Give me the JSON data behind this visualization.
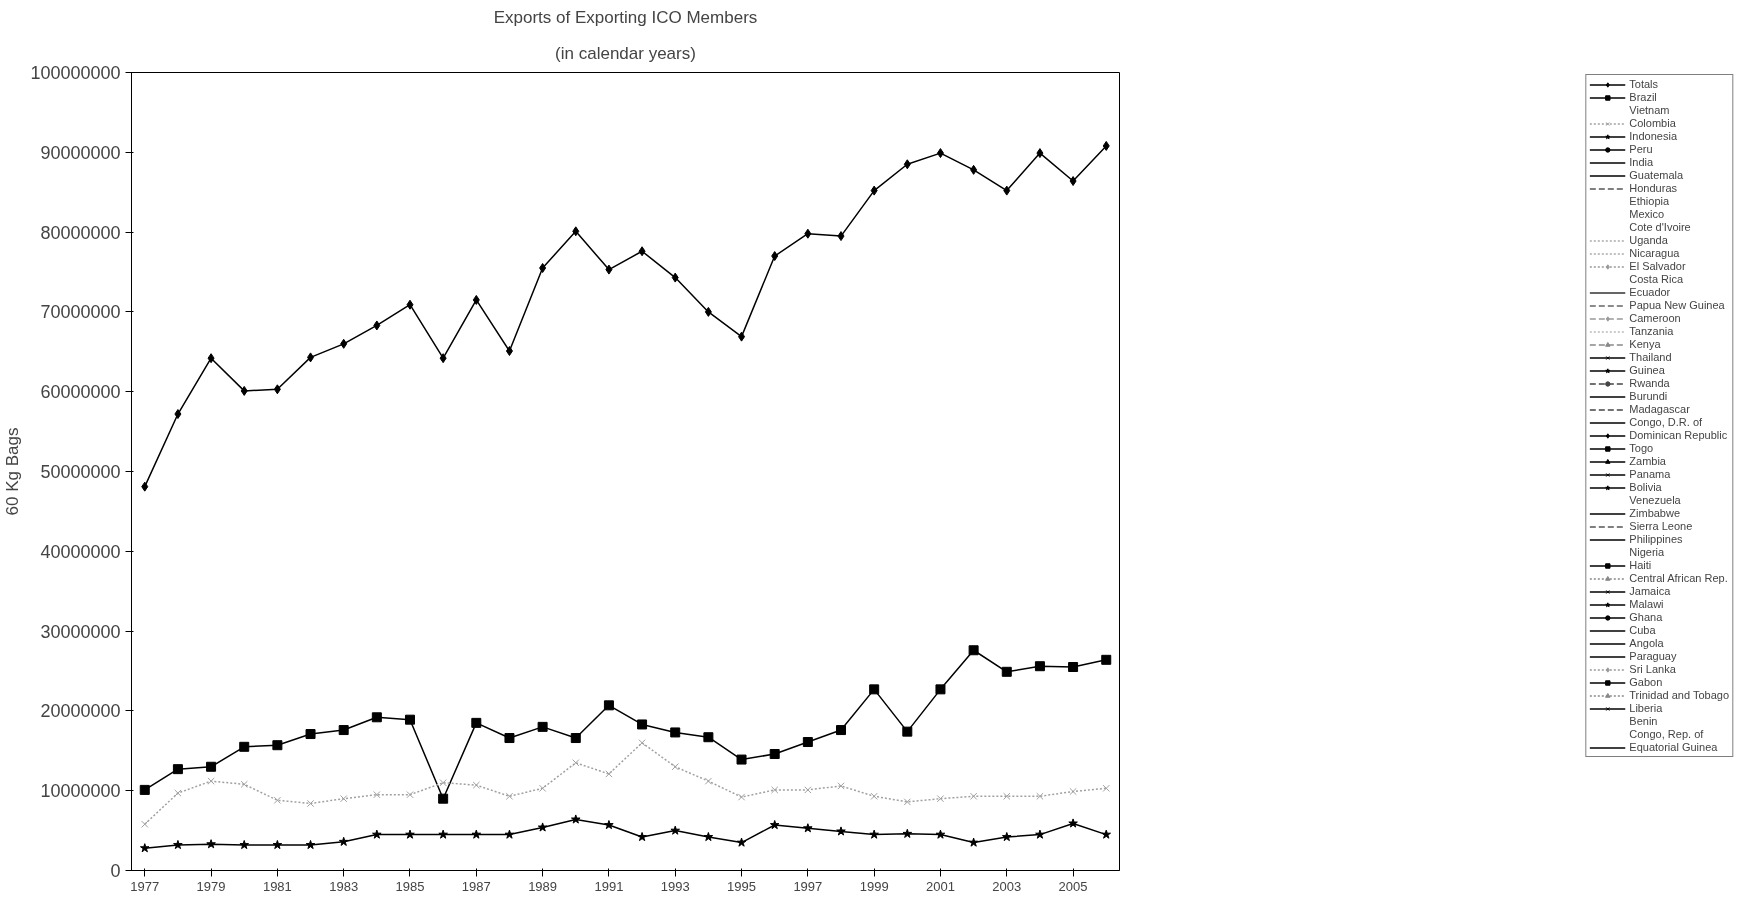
{
  "chart_data": {
    "type": "line",
    "title": "Exports of Exporting ICO Members",
    "subtitle": "(in calendar years)",
    "ylabel": "60 Kg Bags",
    "x": [
      1977,
      1978,
      1979,
      1980,
      1981,
      1982,
      1983,
      1984,
      1985,
      1986,
      1987,
      1988,
      1989,
      1990,
      1991,
      1992,
      1993,
      1994,
      1995,
      1996,
      1997,
      1998,
      1999,
      2000,
      2001,
      2002,
      2003,
      2004,
      2005,
      2006
    ],
    "xlim": [
      1976.6,
      2006.4
    ],
    "xticks": [
      1977,
      1979,
      1981,
      1983,
      1985,
      1987,
      1989,
      1991,
      1993,
      1995,
      1997,
      1999,
      2001,
      2003,
      2005
    ],
    "ylim": [
      0,
      100000000
    ],
    "yticks": [
      0,
      10000000,
      20000000,
      30000000,
      40000000,
      50000000,
      60000000,
      70000000,
      80000000,
      90000000,
      100000000
    ],
    "grid": false,
    "legend": "right",
    "series": [
      {
        "name": "Totals",
        "color": "#000000",
        "marker": "diamond",
        "line_style": "solid",
        "values": [
          48100000,
          57200000,
          64200000,
          60100000,
          60300000,
          64300000,
          66000000,
          68300000,
          70900000,
          64200000,
          71500000,
          65100000,
          75500000,
          80100000,
          75300000,
          77600000,
          74300000,
          70000000,
          66900000,
          77000000,
          79800000,
          79500000,
          85200000,
          88500000,
          89900000,
          87800000,
          85200000,
          89900000,
          86400000,
          90800000
        ]
      },
      {
        "name": "Brazil",
        "color": "#000000",
        "marker": "square",
        "line_style": "solid",
        "values": [
          10100000,
          12700000,
          13000000,
          15500000,
          15700000,
          17100000,
          17600000,
          19200000,
          18900000,
          9000000,
          18500000,
          16600000,
          18000000,
          16600000,
          20700000,
          18300000,
          17300000,
          16700000,
          13900000,
          14600000,
          16100000,
          17600000,
          22700000,
          17400000,
          22700000,
          27600000,
          24900000,
          25600000,
          25500000,
          26400000
        ]
      },
      {
        "name": "Vietnam",
        "marker": "none",
        "line_style": "solid",
        "values": [
          null,
          null,
          null,
          null,
          null,
          null,
          null,
          null,
          null,
          null,
          null,
          null,
          null,
          null,
          null,
          null,
          null,
          null,
          null,
          null,
          null,
          null,
          null,
          null,
          null,
          null,
          null,
          null,
          null,
          null
        ]
      },
      {
        "name": "Colombia",
        "color": "#a0a0a0",
        "marker": "cross",
        "line_style": "dotted",
        "values": [
          5800000,
          9700000,
          11200000,
          10800000,
          8800000,
          8400000,
          9000000,
          9500000,
          9500000,
          11000000,
          10700000,
          9300000,
          10300000,
          13500000,
          12100000,
          16000000,
          13000000,
          11200000,
          9200000,
          10100000,
          10100000,
          10600000,
          9300000,
          8600000,
          9000000,
          9300000,
          9300000,
          9300000,
          9900000,
          10300000
        ]
      },
      {
        "name": "Indonesia",
        "color": "#000000",
        "marker": "star",
        "line_style": "solid",
        "values": [
          2800000,
          3200000,
          3300000,
          3200000,
          3200000,
          3200000,
          3600000,
          4500000,
          4500000,
          4500000,
          4500000,
          4500000,
          5400000,
          6400000,
          5700000,
          4200000,
          5000000,
          4200000,
          3500000,
          5700000,
          5300000,
          4900000,
          4500000,
          4600000,
          4500000,
          3500000,
          4200000,
          4500000,
          5900000,
          4500000
        ]
      },
      {
        "name": "Peru",
        "color": "#000000",
        "marker": "circle",
        "line_style": "solid",
        "values": [
          null,
          null,
          null,
          null,
          null,
          null,
          null,
          null,
          null,
          null,
          null,
          null,
          null,
          null,
          null,
          null,
          null,
          null,
          null,
          null,
          null,
          null,
          null,
          null,
          null,
          null,
          null,
          null,
          null,
          null
        ]
      },
      {
        "name": "India",
        "color": "#000000",
        "marker": "none",
        "line_style": "solid",
        "values": [
          null,
          null,
          null,
          null,
          null,
          null,
          null,
          null,
          null,
          null,
          null,
          null,
          null,
          null,
          null,
          null,
          null,
          null,
          null,
          null,
          null,
          null,
          null,
          null,
          null,
          null,
          null,
          null,
          null,
          null
        ]
      },
      {
        "name": "Guatemala",
        "color": "#000000",
        "marker": "none",
        "line_style": "solid",
        "values": [
          null,
          null,
          null,
          null,
          null,
          null,
          null,
          null,
          null,
          null,
          null,
          null,
          null,
          null,
          null,
          null,
          null,
          null,
          null,
          null,
          null,
          null,
          null,
          null,
          null,
          null,
          null,
          null,
          null,
          null
        ]
      },
      {
        "name": "Honduras",
        "color": "#555555",
        "marker": "none",
        "line_style": "dashed",
        "values": [
          null,
          null,
          null,
          null,
          null,
          null,
          null,
          null,
          null,
          null,
          null,
          null,
          null,
          null,
          null,
          null,
          null,
          null,
          null,
          null,
          null,
          null,
          null,
          null,
          null,
          null,
          null,
          null,
          null,
          null
        ]
      },
      {
        "name": "Ethiopia",
        "marker": "none",
        "line_style": "solid",
        "values": [
          null,
          null,
          null,
          null,
          null,
          null,
          null,
          null,
          null,
          null,
          null,
          null,
          null,
          null,
          null,
          null,
          null,
          null,
          null,
          null,
          null,
          null,
          null,
          null,
          null,
          null,
          null,
          null,
          null,
          null
        ]
      },
      {
        "name": "Mexico",
        "marker": "none",
        "line_style": "solid",
        "values": [
          null,
          null,
          null,
          null,
          null,
          null,
          null,
          null,
          null,
          null,
          null,
          null,
          null,
          null,
          null,
          null,
          null,
          null,
          null,
          null,
          null,
          null,
          null,
          null,
          null,
          null,
          null,
          null,
          null,
          null
        ]
      },
      {
        "name": "Cote d'Ivoire",
        "marker": "none",
        "line_style": "solid",
        "values": [
          null,
          null,
          null,
          null,
          null,
          null,
          null,
          null,
          null,
          null,
          null,
          null,
          null,
          null,
          null,
          null,
          null,
          null,
          null,
          null,
          null,
          null,
          null,
          null,
          null,
          null,
          null,
          null,
          null,
          null
        ]
      },
      {
        "name": "Uganda",
        "color": "#aaaaaa",
        "marker": "none",
        "line_style": "dotted",
        "values": [
          null,
          null,
          null,
          null,
          null,
          null,
          null,
          null,
          null,
          null,
          null,
          null,
          null,
          null,
          null,
          null,
          null,
          null,
          null,
          null,
          null,
          null,
          null,
          null,
          null,
          null,
          null,
          null,
          null,
          null
        ]
      },
      {
        "name": "Nicaragua",
        "color": "#aaaaaa",
        "marker": "none",
        "line_style": "dotted",
        "values": [
          null,
          null,
          null,
          null,
          null,
          null,
          null,
          null,
          null,
          null,
          null,
          null,
          null,
          null,
          null,
          null,
          null,
          null,
          null,
          null,
          null,
          null,
          null,
          null,
          null,
          null,
          null,
          null,
          null,
          null
        ]
      },
      {
        "name": "El Salvador",
        "color": "#999999",
        "marker": "diamond",
        "line_style": "dotted",
        "values": [
          null,
          null,
          null,
          null,
          null,
          null,
          null,
          null,
          null,
          null,
          null,
          null,
          null,
          null,
          null,
          null,
          null,
          null,
          null,
          null,
          null,
          null,
          null,
          null,
          null,
          null,
          null,
          null,
          null,
          null
        ]
      },
      {
        "name": "Costa Rica",
        "marker": "none",
        "line_style": "solid",
        "values": [
          null,
          null,
          null,
          null,
          null,
          null,
          null,
          null,
          null,
          null,
          null,
          null,
          null,
          null,
          null,
          null,
          null,
          null,
          null,
          null,
          null,
          null,
          null,
          null,
          null,
          null,
          null,
          null,
          null,
          null
        ]
      },
      {
        "name": "Ecuador",
        "color": "#333333",
        "marker": "none",
        "line_style": "solid",
        "values": [
          null,
          null,
          null,
          null,
          null,
          null,
          null,
          null,
          null,
          null,
          null,
          null,
          null,
          null,
          null,
          null,
          null,
          null,
          null,
          null,
          null,
          null,
          null,
          null,
          null,
          null,
          null,
          null,
          null,
          null
        ]
      },
      {
        "name": "Papua New Guinea",
        "color": "#666666",
        "marker": "none",
        "line_style": "dashed",
        "values": [
          null,
          null,
          null,
          null,
          null,
          null,
          null,
          null,
          null,
          null,
          null,
          null,
          null,
          null,
          null,
          null,
          null,
          null,
          null,
          null,
          null,
          null,
          null,
          null,
          null,
          null,
          null,
          null,
          null,
          null
        ]
      },
      {
        "name": "Cameroon",
        "color": "#999999",
        "marker": "diamond",
        "line_style": "dashed",
        "values": [
          null,
          null,
          null,
          null,
          null,
          null,
          null,
          null,
          null,
          null,
          null,
          null,
          null,
          null,
          null,
          null,
          null,
          null,
          null,
          null,
          null,
          null,
          null,
          null,
          null,
          null,
          null,
          null,
          null,
          null
        ]
      },
      {
        "name": "Tanzania",
        "color": "#bbbbbb",
        "marker": "none",
        "line_style": "dotted",
        "values": [
          null,
          null,
          null,
          null,
          null,
          null,
          null,
          null,
          null,
          null,
          null,
          null,
          null,
          null,
          null,
          null,
          null,
          null,
          null,
          null,
          null,
          null,
          null,
          null,
          null,
          null,
          null,
          null,
          null,
          null
        ]
      },
      {
        "name": "Kenya",
        "color": "#888888",
        "marker": "triangle",
        "line_style": "dashed",
        "values": [
          null,
          null,
          null,
          null,
          null,
          null,
          null,
          null,
          null,
          null,
          null,
          null,
          null,
          null,
          null,
          null,
          null,
          null,
          null,
          null,
          null,
          null,
          null,
          null,
          null,
          null,
          null,
          null,
          null,
          null
        ]
      },
      {
        "name": "Thailand",
        "color": "#000000",
        "marker": "cross",
        "line_style": "solid",
        "values": [
          null,
          null,
          null,
          null,
          null,
          null,
          null,
          null,
          null,
          null,
          null,
          null,
          null,
          null,
          null,
          null,
          null,
          null,
          null,
          null,
          null,
          null,
          null,
          null,
          null,
          null,
          null,
          null,
          null,
          null
        ]
      },
      {
        "name": "Guinea",
        "color": "#000000",
        "marker": "star",
        "line_style": "solid",
        "values": [
          null,
          null,
          null,
          null,
          null,
          null,
          null,
          null,
          null,
          null,
          null,
          null,
          null,
          null,
          null,
          null,
          null,
          null,
          null,
          null,
          null,
          null,
          null,
          null,
          null,
          null,
          null,
          null,
          null,
          null
        ]
      },
      {
        "name": "Rwanda",
        "color": "#444444",
        "marker": "circle",
        "line_style": "dashed",
        "values": [
          null,
          null,
          null,
          null,
          null,
          null,
          null,
          null,
          null,
          null,
          null,
          null,
          null,
          null,
          null,
          null,
          null,
          null,
          null,
          null,
          null,
          null,
          null,
          null,
          null,
          null,
          null,
          null,
          null,
          null
        ]
      },
      {
        "name": "Burundi",
        "color": "#000000",
        "marker": "none",
        "line_style": "solid",
        "values": [
          null,
          null,
          null,
          null,
          null,
          null,
          null,
          null,
          null,
          null,
          null,
          null,
          null,
          null,
          null,
          null,
          null,
          null,
          null,
          null,
          null,
          null,
          null,
          null,
          null,
          null,
          null,
          null,
          null,
          null
        ]
      },
      {
        "name": "Madagascar",
        "color": "#444444",
        "marker": "none",
        "line_style": "dashed",
        "values": [
          null,
          null,
          null,
          null,
          null,
          null,
          null,
          null,
          null,
          null,
          null,
          null,
          null,
          null,
          null,
          null,
          null,
          null,
          null,
          null,
          null,
          null,
          null,
          null,
          null,
          null,
          null,
          null,
          null,
          null
        ]
      },
      {
        "name": "Congo, D.R. of",
        "color": "#000000",
        "marker": "none",
        "line_style": "solid",
        "values": [
          null,
          null,
          null,
          null,
          null,
          null,
          null,
          null,
          null,
          null,
          null,
          null,
          null,
          null,
          null,
          null,
          null,
          null,
          null,
          null,
          null,
          null,
          null,
          null,
          null,
          null,
          null,
          null,
          null,
          null
        ]
      },
      {
        "name": "Dominican Republic",
        "color": "#000000",
        "marker": "diamond",
        "line_style": "solid",
        "values": [
          null,
          null,
          null,
          null,
          null,
          null,
          null,
          null,
          null,
          null,
          null,
          null,
          null,
          null,
          null,
          null,
          null,
          null,
          null,
          null,
          null,
          null,
          null,
          null,
          null,
          null,
          null,
          null,
          null,
          null
        ]
      },
      {
        "name": "Togo",
        "color": "#000000",
        "marker": "square",
        "line_style": "solid",
        "values": [
          null,
          null,
          null,
          null,
          null,
          null,
          null,
          null,
          null,
          null,
          null,
          null,
          null,
          null,
          null,
          null,
          null,
          null,
          null,
          null,
          null,
          null,
          null,
          null,
          null,
          null,
          null,
          null,
          null,
          null
        ]
      },
      {
        "name": "Zambia",
        "color": "#000000",
        "marker": "triangle",
        "line_style": "solid",
        "values": [
          null,
          null,
          null,
          null,
          null,
          null,
          null,
          null,
          null,
          null,
          null,
          null,
          null,
          null,
          null,
          null,
          null,
          null,
          null,
          null,
          null,
          null,
          null,
          null,
          null,
          null,
          null,
          null,
          null,
          null
        ]
      },
      {
        "name": "Panama",
        "color": "#000000",
        "marker": "cross",
        "line_style": "solid",
        "values": [
          null,
          null,
          null,
          null,
          null,
          null,
          null,
          null,
          null,
          null,
          null,
          null,
          null,
          null,
          null,
          null,
          null,
          null,
          null,
          null,
          null,
          null,
          null,
          null,
          null,
          null,
          null,
          null,
          null,
          null
        ]
      },
      {
        "name": "Bolivia",
        "color": "#000000",
        "marker": "star",
        "line_style": "solid",
        "values": [
          null,
          null,
          null,
          null,
          null,
          null,
          null,
          null,
          null,
          null,
          null,
          null,
          null,
          null,
          null,
          null,
          null,
          null,
          null,
          null,
          null,
          null,
          null,
          null,
          null,
          null,
          null,
          null,
          null,
          null
        ]
      },
      {
        "name": "Venezuela",
        "marker": "none",
        "line_style": "solid",
        "values": [
          null,
          null,
          null,
          null,
          null,
          null,
          null,
          null,
          null,
          null,
          null,
          null,
          null,
          null,
          null,
          null,
          null,
          null,
          null,
          null,
          null,
          null,
          null,
          null,
          null,
          null,
          null,
          null,
          null,
          null
        ]
      },
      {
        "name": "Zimbabwe",
        "color": "#000000",
        "marker": "none",
        "line_style": "solid",
        "values": [
          null,
          null,
          null,
          null,
          null,
          null,
          null,
          null,
          null,
          null,
          null,
          null,
          null,
          null,
          null,
          null,
          null,
          null,
          null,
          null,
          null,
          null,
          null,
          null,
          null,
          null,
          null,
          null,
          null,
          null
        ]
      },
      {
        "name": "Sierra Leone",
        "color": "#555555",
        "marker": "none",
        "line_style": "dashed",
        "values": [
          null,
          null,
          null,
          null,
          null,
          null,
          null,
          null,
          null,
          null,
          null,
          null,
          null,
          null,
          null,
          null,
          null,
          null,
          null,
          null,
          null,
          null,
          null,
          null,
          null,
          null,
          null,
          null,
          null,
          null
        ]
      },
      {
        "name": "Philippines",
        "color": "#000000",
        "marker": "none",
        "line_style": "solid",
        "values": [
          null,
          null,
          null,
          null,
          null,
          null,
          null,
          null,
          null,
          null,
          null,
          null,
          null,
          null,
          null,
          null,
          null,
          null,
          null,
          null,
          null,
          null,
          null,
          null,
          null,
          null,
          null,
          null,
          null,
          null
        ]
      },
      {
        "name": "Nigeria",
        "marker": "none",
        "line_style": "solid",
        "values": [
          null,
          null,
          null,
          null,
          null,
          null,
          null,
          null,
          null,
          null,
          null,
          null,
          null,
          null,
          null,
          null,
          null,
          null,
          null,
          null,
          null,
          null,
          null,
          null,
          null,
          null,
          null,
          null,
          null,
          null
        ]
      },
      {
        "name": "Haiti",
        "color": "#000000",
        "marker": "square",
        "line_style": "solid",
        "values": [
          null,
          null,
          null,
          null,
          null,
          null,
          null,
          null,
          null,
          null,
          null,
          null,
          null,
          null,
          null,
          null,
          null,
          null,
          null,
          null,
          null,
          null,
          null,
          null,
          null,
          null,
          null,
          null,
          null,
          null
        ]
      },
      {
        "name": "Central African Rep.",
        "color": "#888888",
        "marker": "triangle",
        "line_style": "dotted",
        "values": [
          null,
          null,
          null,
          null,
          null,
          null,
          null,
          null,
          null,
          null,
          null,
          null,
          null,
          null,
          null,
          null,
          null,
          null,
          null,
          null,
          null,
          null,
          null,
          null,
          null,
          null,
          null,
          null,
          null,
          null
        ]
      },
      {
        "name": "Jamaica",
        "color": "#000000",
        "marker": "cross",
        "line_style": "solid",
        "values": [
          null,
          null,
          null,
          null,
          null,
          null,
          null,
          null,
          null,
          null,
          null,
          null,
          null,
          null,
          null,
          null,
          null,
          null,
          null,
          null,
          null,
          null,
          null,
          null,
          null,
          null,
          null,
          null,
          null,
          null
        ]
      },
      {
        "name": "Malawi",
        "color": "#000000",
        "marker": "star",
        "line_style": "solid",
        "values": [
          null,
          null,
          null,
          null,
          null,
          null,
          null,
          null,
          null,
          null,
          null,
          null,
          null,
          null,
          null,
          null,
          null,
          null,
          null,
          null,
          null,
          null,
          null,
          null,
          null,
          null,
          null,
          null,
          null,
          null
        ]
      },
      {
        "name": "Ghana",
        "color": "#000000",
        "marker": "circle",
        "line_style": "solid",
        "values": [
          null,
          null,
          null,
          null,
          null,
          null,
          null,
          null,
          null,
          null,
          null,
          null,
          null,
          null,
          null,
          null,
          null,
          null,
          null,
          null,
          null,
          null,
          null,
          null,
          null,
          null,
          null,
          null,
          null,
          null
        ]
      },
      {
        "name": "Cuba",
        "color": "#000000",
        "marker": "none",
        "line_style": "solid",
        "values": [
          null,
          null,
          null,
          null,
          null,
          null,
          null,
          null,
          null,
          null,
          null,
          null,
          null,
          null,
          null,
          null,
          null,
          null,
          null,
          null,
          null,
          null,
          null,
          null,
          null,
          null,
          null,
          null,
          null,
          null
        ]
      },
      {
        "name": "Angola",
        "color": "#000000",
        "marker": "none",
        "line_style": "solid",
        "values": [
          null,
          null,
          null,
          null,
          null,
          null,
          null,
          null,
          null,
          null,
          null,
          null,
          null,
          null,
          null,
          null,
          null,
          null,
          null,
          null,
          null,
          null,
          null,
          null,
          null,
          null,
          null,
          null,
          null,
          null
        ]
      },
      {
        "name": "Paraguay",
        "color": "#000000",
        "marker": "none",
        "line_style": "solid",
        "values": [
          null,
          null,
          null,
          null,
          null,
          null,
          null,
          null,
          null,
          null,
          null,
          null,
          null,
          null,
          null,
          null,
          null,
          null,
          null,
          null,
          null,
          null,
          null,
          null,
          null,
          null,
          null,
          null,
          null,
          null
        ]
      },
      {
        "name": "Sri Lanka",
        "color": "#999999",
        "marker": "diamond",
        "line_style": "dotted",
        "values": [
          null,
          null,
          null,
          null,
          null,
          null,
          null,
          null,
          null,
          null,
          null,
          null,
          null,
          null,
          null,
          null,
          null,
          null,
          null,
          null,
          null,
          null,
          null,
          null,
          null,
          null,
          null,
          null,
          null,
          null
        ]
      },
      {
        "name": "Gabon",
        "color": "#000000",
        "marker": "square",
        "line_style": "solid",
        "values": [
          null,
          null,
          null,
          null,
          null,
          null,
          null,
          null,
          null,
          null,
          null,
          null,
          null,
          null,
          null,
          null,
          null,
          null,
          null,
          null,
          null,
          null,
          null,
          null,
          null,
          null,
          null,
          null,
          null,
          null
        ]
      },
      {
        "name": "Trinidad and Tobago",
        "color": "#888888",
        "marker": "triangle",
        "line_style": "dotted",
        "values": [
          null,
          null,
          null,
          null,
          null,
          null,
          null,
          null,
          null,
          null,
          null,
          null,
          null,
          null,
          null,
          null,
          null,
          null,
          null,
          null,
          null,
          null,
          null,
          null,
          null,
          null,
          null,
          null,
          null,
          null
        ]
      },
      {
        "name": "Liberia",
        "color": "#000000",
        "marker": "cross",
        "line_style": "solid",
        "values": [
          null,
          null,
          null,
          null,
          null,
          null,
          null,
          null,
          null,
          null,
          null,
          null,
          null,
          null,
          null,
          null,
          null,
          null,
          null,
          null,
          null,
          null,
          null,
          null,
          null,
          null,
          null,
          null,
          null,
          null
        ]
      },
      {
        "name": "Benin",
        "marker": "none",
        "line_style": "solid",
        "values": [
          null,
          null,
          null,
          null,
          null,
          null,
          null,
          null,
          null,
          null,
          null,
          null,
          null,
          null,
          null,
          null,
          null,
          null,
          null,
          null,
          null,
          null,
          null,
          null,
          null,
          null,
          null,
          null,
          null,
          null
        ]
      },
      {
        "name": "Congo, Rep. of",
        "marker": "none",
        "line_style": "solid",
        "values": [
          null,
          null,
          null,
          null,
          null,
          null,
          null,
          null,
          null,
          null,
          null,
          null,
          null,
          null,
          null,
          null,
          null,
          null,
          null,
          null,
          null,
          null,
          null,
          null,
          null,
          null,
          null,
          null,
          null,
          null
        ]
      },
      {
        "name": "Equatorial Guinea",
        "color": "#000000",
        "marker": "none",
        "line_style": "solid",
        "values": [
          null,
          null,
          null,
          null,
          null,
          null,
          null,
          null,
          null,
          null,
          null,
          null,
          null,
          null,
          null,
          null,
          null,
          null,
          null,
          null,
          null,
          null,
          null,
          null,
          null,
          null,
          null,
          null,
          null,
          null
        ]
      }
    ]
  }
}
